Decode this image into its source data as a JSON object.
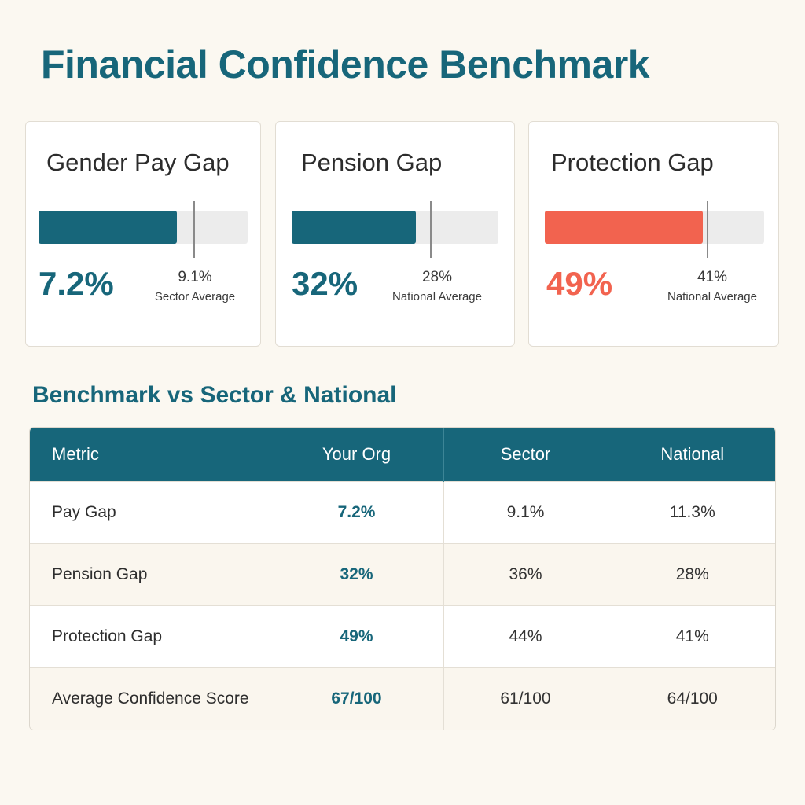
{
  "page": {
    "title": "Financial Confidence Benchmark"
  },
  "colors": {
    "accent": "#17667a",
    "alert": "#f2634f",
    "track": "#ececec",
    "marker": "#8a8a8a",
    "background": "#fbf8f1"
  },
  "cards": [
    {
      "title": "Gender Pay Gap",
      "value": "7.2%",
      "value_percent": 7.2,
      "reference_value": "9.1%",
      "reference_percent": 9.1,
      "reference_label": "Sector Average",
      "color": "#17667a"
    },
    {
      "title": "Pension Gap",
      "value": "32%",
      "value_percent": 32,
      "reference_value": "28%",
      "reference_percent": 28,
      "reference_label": "National Average",
      "color": "#17667a"
    },
    {
      "title": "Protection Gap",
      "value": "49%",
      "value_percent": 49,
      "reference_value": "41%",
      "reference_percent": 41,
      "reference_label": "National Average",
      "color": "#f2634f"
    }
  ],
  "benchmark": {
    "title": "Benchmark vs Sector & National",
    "columns": [
      "Metric",
      "Your Org",
      "Sector",
      "National"
    ],
    "rows": [
      {
        "metric": "Pay Gap",
        "org": "7.2%",
        "sector": "9.1%",
        "national": "11.3%"
      },
      {
        "metric": "Pension Gap",
        "org": "32%",
        "sector": "36%",
        "national": "28%"
      },
      {
        "metric": "Protection Gap",
        "org": "49%",
        "sector": "44%",
        "national": "41%"
      },
      {
        "metric": "Average Confidence Score",
        "org": "67/100",
        "sector": "61/100",
        "national": "64/100"
      }
    ]
  }
}
